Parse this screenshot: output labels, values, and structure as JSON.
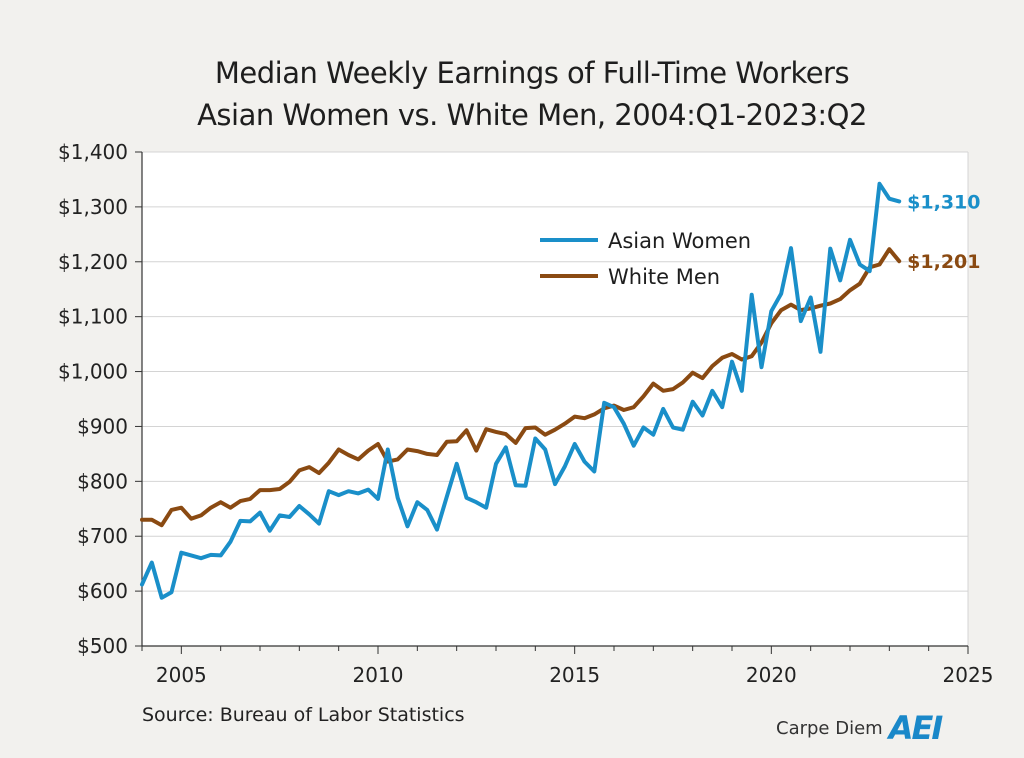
{
  "chart_data": {
    "type": "line",
    "title_line1": "Median Weekly Earnings of Full-Time Workers",
    "title_line2": "Asian Women vs. White Men, 2004:Q1-2023:Q2",
    "xlim": [
      2004,
      2025
    ],
    "ylim": [
      500,
      1400
    ],
    "x_ticks": [
      2005,
      2010,
      2015,
      2020,
      2025
    ],
    "x_tick_labels": [
      "2005",
      "2010",
      "2015",
      "2020",
      "2025"
    ],
    "y_ticks": [
      500,
      600,
      700,
      800,
      900,
      1000,
      1100,
      1200,
      1300,
      1400
    ],
    "y_tick_labels": [
      "$500",
      "$600",
      "$700",
      "$800",
      "$900",
      "$1,000",
      "$1,100",
      "$1,200",
      "$1,300",
      "$1,400"
    ],
    "grid": "horizontal",
    "legend_position": "inside-top-center",
    "x_quarters": [
      "2004:Q1",
      "2004:Q2",
      "2004:Q3",
      "2004:Q4",
      "2005:Q1",
      "2005:Q2",
      "2005:Q3",
      "2005:Q4",
      "2006:Q1",
      "2006:Q2",
      "2006:Q3",
      "2006:Q4",
      "2007:Q1",
      "2007:Q2",
      "2007:Q3",
      "2007:Q4",
      "2008:Q1",
      "2008:Q2",
      "2008:Q3",
      "2008:Q4",
      "2009:Q1",
      "2009:Q2",
      "2009:Q3",
      "2009:Q4",
      "2010:Q1",
      "2010:Q2",
      "2010:Q3",
      "2010:Q4",
      "2011:Q1",
      "2011:Q2",
      "2011:Q3",
      "2011:Q4",
      "2012:Q1",
      "2012:Q2",
      "2012:Q3",
      "2012:Q4",
      "2013:Q1",
      "2013:Q2",
      "2013:Q3",
      "2013:Q4",
      "2014:Q1",
      "2014:Q2",
      "2014:Q3",
      "2014:Q4",
      "2015:Q1",
      "2015:Q2",
      "2015:Q3",
      "2015:Q4",
      "2016:Q1",
      "2016:Q2",
      "2016:Q3",
      "2016:Q4",
      "2017:Q1",
      "2017:Q2",
      "2017:Q3",
      "2017:Q4",
      "2018:Q1",
      "2018:Q2",
      "2018:Q3",
      "2018:Q4",
      "2019:Q1",
      "2019:Q2",
      "2019:Q3",
      "2019:Q4",
      "2020:Q1",
      "2020:Q2",
      "2020:Q3",
      "2020:Q4",
      "2021:Q1",
      "2021:Q2",
      "2021:Q3",
      "2021:Q4",
      "2022:Q1",
      "2022:Q2",
      "2022:Q3",
      "2022:Q4",
      "2023:Q1",
      "2023:Q2"
    ],
    "series": [
      {
        "name": "Asian Women",
        "color": "#1a8fc9",
        "end_label": "$1,310",
        "values": [
          612,
          652,
          588,
          598,
          670,
          665,
          660,
          666,
          665,
          690,
          728,
          727,
          743,
          710,
          738,
          735,
          755,
          740,
          723,
          782,
          775,
          782,
          778,
          785,
          768,
          858,
          770,
          718,
          762,
          748,
          712,
          772,
          832,
          770,
          762,
          752,
          832,
          862,
          793,
          792,
          878,
          858,
          795,
          827,
          868,
          836,
          818,
          943,
          935,
          905,
          865,
          898,
          885,
          932,
          898,
          894,
          945,
          920,
          965,
          935,
          1018,
          965,
          1140,
          1008,
          1110,
          1142,
          1225,
          1092,
          1135,
          1036,
          1224,
          1166,
          1240,
          1195,
          1183,
          1342,
          1315,
          1310
        ]
      },
      {
        "name": "White Men",
        "color": "#8a4a12",
        "end_label": "$1,201",
        "values": [
          730,
          730,
          720,
          748,
          752,
          732,
          738,
          752,
          762,
          752,
          764,
          768,
          784,
          784,
          786,
          799,
          820,
          826,
          815,
          834,
          858,
          848,
          840,
          856,
          868,
          836,
          840,
          858,
          855,
          850,
          848,
          872,
          873,
          893,
          856,
          895,
          890,
          886,
          870,
          897,
          898,
          885,
          894,
          905,
          918,
          915,
          922,
          933,
          938,
          930,
          935,
          955,
          978,
          965,
          968,
          980,
          998,
          988,
          1010,
          1025,
          1032,
          1022,
          1028,
          1053,
          1088,
          1112,
          1122,
          1112,
          1115,
          1120,
          1124,
          1132,
          1148,
          1160,
          1190,
          1195,
          1223,
          1201
        ]
      }
    ]
  },
  "source": "Source: Bureau of Labor Statistics",
  "logo": {
    "text": "Carpe Diem",
    "mark": "AEI"
  }
}
